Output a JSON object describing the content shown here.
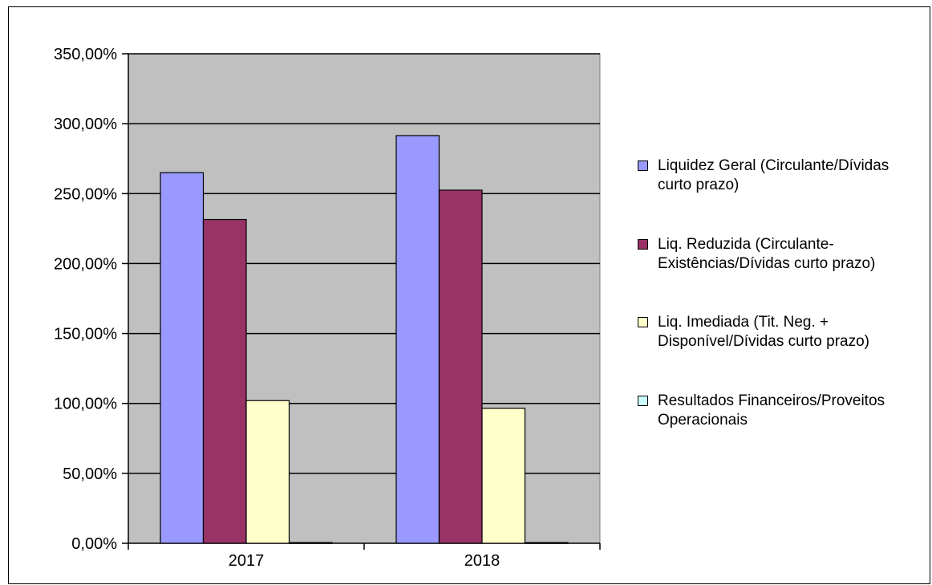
{
  "chart_data": {
    "type": "bar",
    "categories": [
      "2017",
      "2018"
    ],
    "series": [
      {
        "name": "Liquidez Geral (Circulante/Dívidas curto prazo)",
        "color": "#9999ff",
        "values": [
          265.0,
          291.5
        ]
      },
      {
        "name": "Liq. Reduzida (Circulante-Existências/Dívidas curto prazo)",
        "color": "#993366",
        "values": [
          231.5,
          252.5
        ]
      },
      {
        "name": "Liq. Imediada (Tit. Neg. + Disponível/Dívidas curto prazo)",
        "color": "#ffffcc",
        "values": [
          102.0,
          96.5
        ]
      },
      {
        "name": "Resultados Financeiros/Proveitos Operacionais",
        "color": "#ccffff",
        "values": [
          0.5,
          0.5
        ]
      }
    ],
    "ylim": [
      0,
      350
    ],
    "y_ticks": [
      "0,00%",
      "50,00%",
      "100,00%",
      "150,00%",
      "200,00%",
      "250,00%",
      "300,00%",
      "350,00%"
    ],
    "y_tick_values": [
      0,
      50,
      100,
      150,
      200,
      250,
      300,
      350
    ],
    "title": "",
    "xlabel": "",
    "ylabel": "",
    "grid": true,
    "plot_background": "#c0c0c0",
    "legend_position": "right",
    "legend_lines": [
      [
        "Liquidez Geral (Circulante/Dívidas",
        "curto prazo)"
      ],
      [
        "Liq. Reduzida (Circulante-",
        "Existências/Dívidas curto prazo)"
      ],
      [
        "Liq. Imediada (Tit. Neg. +",
        "Disponível/Dívidas curto prazo)"
      ],
      [
        "Resultados Financeiros/Proveitos",
        "Operacionais"
      ]
    ]
  }
}
